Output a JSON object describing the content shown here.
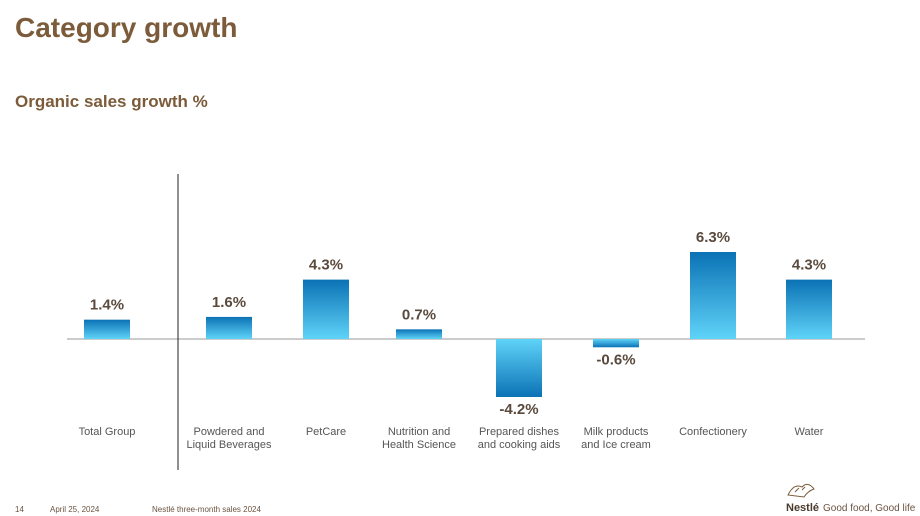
{
  "chart_data": {
    "type": "bar",
    "title": "Category growth",
    "subtitle": "Organic sales growth %",
    "categories": [
      "Total Group",
      "Powdered and\nLiquid Beverages",
      "PetCare",
      "Nutrition and\nHealth Science",
      "Prepared dishes\nand cooking aids",
      "Milk products\nand Ice cream",
      "Confectionery",
      "Water"
    ],
    "values": [
      1.4,
      1.6,
      4.3,
      0.7,
      -4.2,
      -0.6,
      6.3,
      4.3
    ],
    "value_labels": [
      "1.4%",
      "1.6%",
      "4.3%",
      "0.7%",
      "-4.2%",
      "-0.6%",
      "6.3%",
      "4.3%"
    ],
    "color": "#0b72b5",
    "gradient_end": "#5fd3f8"
  },
  "footer": {
    "page": "14",
    "date": "April 25, 2024",
    "report": "Nestlé three-month sales 2024",
    "brand": "Nestlé",
    "slogan": "Good food, Good life"
  }
}
